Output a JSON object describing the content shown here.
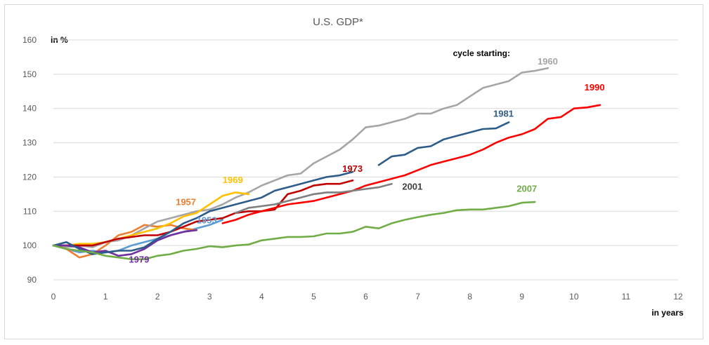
{
  "chart_data": {
    "type": "line",
    "title": "U.S. GDP*",
    "ylabel": "in %",
    "xlabel": "in years",
    "xlim": [
      0,
      12
    ],
    "ylim": [
      90,
      160
    ],
    "xticks": [
      0,
      1,
      2,
      3,
      4,
      5,
      6,
      7,
      8,
      9,
      10,
      11,
      12
    ],
    "yticks": [
      90,
      100,
      110,
      120,
      130,
      140,
      150,
      160
    ],
    "grid": "horizontal",
    "legend_caption": "cycle starting:",
    "series": [
      {
        "name": "1953",
        "color": "#5b9bd5",
        "x": [
          0,
          0.25,
          0.5,
          0.75,
          1,
          1.25,
          1.5,
          1.75,
          2,
          2.25,
          2.5,
          2.75,
          3,
          3.25
        ],
        "y": [
          100,
          99,
          98,
          98.5,
          98,
          98.5,
          100,
          101,
          102,
          103,
          104,
          105,
          106,
          107.5
        ]
      },
      {
        "name": "1957",
        "color": "#ed7d31",
        "x": [
          0,
          0.25,
          0.5,
          0.75,
          1,
          1.25,
          1.5,
          1.75,
          2,
          2.25,
          2.5,
          2.75
        ],
        "y": [
          100,
          99,
          96.5,
          97.5,
          100,
          103,
          104,
          106,
          105.5,
          106,
          105,
          104.5
        ]
      },
      {
        "name": "1960",
        "color": "#a5a5a5",
        "x": [
          0,
          0.25,
          0.5,
          0.75,
          1,
          1.25,
          1.5,
          1.75,
          2,
          2.25,
          2.5,
          2.75,
          3,
          3.25,
          3.5,
          3.75,
          4,
          4.25,
          4.5,
          4.75,
          5,
          5.25,
          5.5,
          5.75,
          6,
          6.25,
          6.5,
          6.75,
          7,
          7.25,
          7.5,
          7.75,
          8,
          8.25,
          8.5,
          8.75,
          9,
          9.25,
          9.5
        ],
        "y": [
          100,
          99.5,
          100,
          99.5,
          101,
          101.5,
          103,
          105,
          107,
          108,
          109,
          110,
          110.5,
          112,
          114,
          115.5,
          117.5,
          119,
          120.5,
          121,
          124,
          126,
          128,
          131,
          134.5,
          135,
          136,
          137,
          138.5,
          138.5,
          140,
          141,
          143.5,
          146,
          147,
          148,
          150.5,
          151,
          151.8
        ]
      },
      {
        "name": "1969",
        "color": "#ffc000",
        "x": [
          0,
          0.25,
          0.5,
          0.75,
          1,
          1.25,
          1.5,
          1.75,
          2,
          2.25,
          2.5,
          2.75,
          3,
          3.25,
          3.5,
          3.75
        ],
        "y": [
          100,
          100,
          100.5,
          100.5,
          101,
          102,
          103,
          104,
          105,
          106.5,
          108.5,
          109.5,
          112,
          114.5,
          115.5,
          115
        ]
      },
      {
        "name": "1973",
        "color": "#c00000",
        "x": [
          0,
          0.25,
          0.5,
          0.75,
          1,
          1.25,
          1.5,
          1.75,
          2,
          2.25,
          2.5,
          2.75,
          3,
          3.25,
          3.5,
          3.75,
          4,
          4.25,
          4.5,
          4.75,
          5,
          5.25,
          5.5,
          5.75
        ],
        "y": [
          100,
          100,
          100,
          100,
          101,
          102,
          102.5,
          103,
          103,
          104,
          105.5,
          107,
          107.5,
          108,
          109.5,
          110,
          110,
          110.5,
          115,
          116,
          117.5,
          118,
          118,
          119
        ]
      },
      {
        "name": "1979",
        "color": "#7030a0",
        "x": [
          0,
          0.25,
          0.5,
          0.75,
          1,
          1.25,
          1.5,
          1.75,
          2,
          2.25,
          2.5,
          2.75
        ],
        "y": [
          100,
          100,
          99.5,
          98,
          98.5,
          97,
          97.5,
          99,
          101.5,
          103,
          104,
          104.5
        ]
      },
      {
        "name": "1981",
        "color": "#2e5c8a",
        "x": [
          0,
          0.25,
          0.5,
          0.75,
          1,
          1.25,
          1.5,
          1.75,
          2,
          2.25,
          2.5,
          2.75,
          3,
          3.25,
          3.5,
          3.75,
          4,
          4.25,
          4.5,
          4.75,
          5,
          5.25,
          5.5,
          5.75,
          6,
          6.25,
          6.5,
          6.75,
          7,
          7.25,
          7.5,
          7.75,
          8,
          8.25,
          8.5,
          8.75
        ],
        "y": [
          100,
          101,
          99,
          97.5,
          98,
          98.5,
          98.5,
          99.5,
          102,
          104,
          106.5,
          108,
          110,
          111,
          112,
          113,
          114,
          116,
          117,
          118,
          119,
          120,
          120.5,
          121.5,
          null,
          123.5,
          126,
          126.5,
          128.5,
          129,
          131,
          132,
          133,
          134,
          134.2,
          136
        ]
      },
      {
        "name": "1990",
        "color": "#ff0000",
        "x": [
          3.25,
          3.5,
          3.75,
          4,
          4.25,
          4.5,
          4.75,
          5,
          5.25,
          5.5,
          5.75,
          6,
          6.25,
          6.5,
          6.75,
          7,
          7.25,
          7.5,
          7.75,
          8,
          8.25,
          8.5,
          8.75,
          9,
          9.25,
          9.5,
          9.75,
          10,
          10.25,
          10.5
        ],
        "y": [
          106.5,
          107.5,
          109,
          110,
          111,
          112,
          112.5,
          113,
          114,
          115,
          116,
          117.5,
          118.5,
          119.5,
          120.5,
          122,
          123.5,
          124.5,
          125.5,
          126.5,
          128,
          130,
          131.5,
          132.5,
          134,
          137,
          137.5,
          140,
          140.3,
          141
        ]
      },
      {
        "name": "2001",
        "color": "#7f7f7f",
        "x": [
          3.5,
          3.75,
          4,
          4.25,
          4.5,
          4.75,
          5,
          5.25,
          5.5,
          5.75,
          6,
          6.25,
          6.5
        ],
        "y": [
          109.5,
          111,
          111.5,
          112,
          113,
          114,
          115,
          115.5,
          115.5,
          116,
          116.5,
          117,
          118
        ]
      },
      {
        "name": "2007",
        "color": "#70ad47",
        "x": [
          0,
          0.25,
          0.5,
          0.75,
          1,
          1.25,
          1.5,
          1.75,
          2,
          2.25,
          2.5,
          2.75,
          3,
          3.25,
          3.5,
          3.75,
          4,
          4.25,
          4.5,
          4.75,
          5,
          5.25,
          5.5,
          5.75,
          6,
          6.25,
          6.5,
          6.75,
          7,
          7.25,
          7.5,
          7.75,
          8,
          8.25,
          8.5,
          8.75,
          9,
          9.25
        ],
        "y": [
          100,
          99,
          98.5,
          98,
          97,
          96.5,
          96,
          96,
          97,
          97.5,
          98.5,
          99,
          99.8,
          99.5,
          100,
          100.3,
          101.5,
          102,
          102.5,
          102.5,
          102.7,
          103.5,
          103.5,
          104,
          105.5,
          105,
          106.5,
          107.5,
          108.3,
          109,
          109.5,
          110.3,
          110.5,
          110.5,
          111,
          111.5,
          112.5,
          112.7
        ]
      }
    ],
    "labels": [
      {
        "text": "1960",
        "color": "#a5a5a5",
        "x": 9.3,
        "y": 152.8
      },
      {
        "text": "1990",
        "color": "#ff0000",
        "x": 10.2,
        "y": 145.3
      },
      {
        "text": "1981",
        "color": "#2e5c8a",
        "x": 8.45,
        "y": 137.6
      },
      {
        "text": "1973",
        "color": "#c00000",
        "x": 5.55,
        "y": 121.5
      },
      {
        "text": "2001",
        "color": "#404040",
        "x": 6.7,
        "y": 116.3
      },
      {
        "text": "2007",
        "color": "#70ad47",
        "x": 8.9,
        "y": 115.7
      },
      {
        "text": "1969",
        "color": "#ffc000",
        "x": 3.25,
        "y": 118.2
      },
      {
        "text": "1957",
        "color": "#ed7d31",
        "x": 2.35,
        "y": 111.8
      },
      {
        "text": "1953",
        "color": "#5b9bd5",
        "x": 2.75,
        "y": 106.5
      },
      {
        "text": "1979",
        "color": "#7030a0",
        "x": 1.45,
        "y": 95
      }
    ]
  }
}
